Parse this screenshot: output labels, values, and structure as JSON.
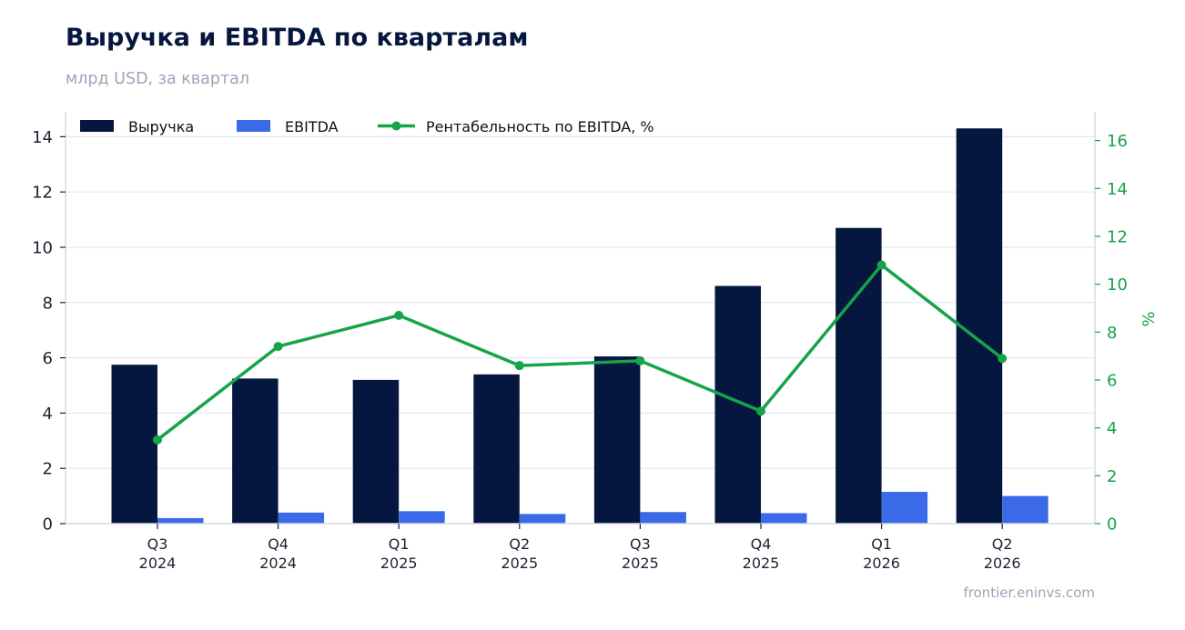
{
  "title": "Выручка и EBITDA по кварталам",
  "subtitle": "млрд USD, за квартал",
  "source": "frontier.eninvs.com",
  "colors": {
    "revenue": "#06173f",
    "ebitda": "#3b6ae8",
    "margin": "#16a34a",
    "grid": "#e3e7f1",
    "axis": "#d5dae6"
  },
  "chart_data": {
    "type": "bar",
    "categories": [
      [
        "Q3",
        "2024"
      ],
      [
        "Q4",
        "2024"
      ],
      [
        "Q1",
        "2025"
      ],
      [
        "Q2",
        "2025"
      ],
      [
        "Q3",
        "2025"
      ],
      [
        "Q4",
        "2025"
      ],
      [
        "Q1",
        "2026"
      ],
      [
        "Q2",
        "2026"
      ]
    ],
    "series": [
      {
        "name": "Выручка",
        "kind": "bar",
        "axis": "left",
        "values": [
          5.75,
          5.25,
          5.2,
          5.4,
          6.05,
          8.6,
          10.7,
          14.3
        ]
      },
      {
        "name": "EBITDA",
        "kind": "bar",
        "axis": "left",
        "values": [
          0.2,
          0.4,
          0.45,
          0.35,
          0.42,
          0.38,
          1.15,
          1.0
        ]
      },
      {
        "name": "Рентабельность по EBITDA, %",
        "kind": "line",
        "axis": "right",
        "values": [
          3.5,
          7.4,
          8.7,
          6.6,
          6.8,
          4.7,
          10.8,
          6.9
        ]
      }
    ],
    "ylim": [
      0,
      14.9
    ],
    "yticks": [
      0,
      2,
      4,
      6,
      8,
      10,
      12,
      14
    ],
    "y2lim": [
      0,
      17.2
    ],
    "y2ticks": [
      0,
      2,
      4,
      6,
      8,
      10,
      12,
      14,
      16
    ],
    "y2label": "%",
    "xlabel": "",
    "ylabel": "",
    "grid": true,
    "legend_position": "top-left"
  }
}
